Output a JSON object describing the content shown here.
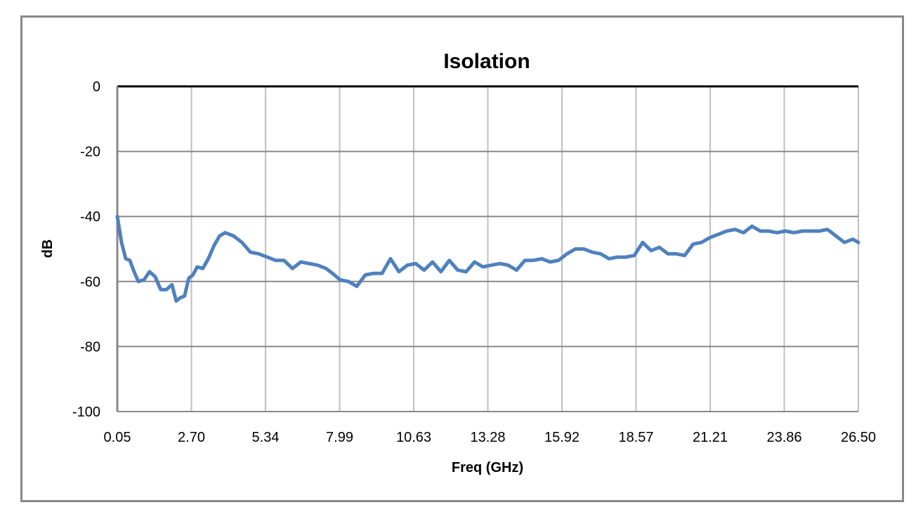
{
  "chart_data": {
    "type": "line",
    "title": "Isolation",
    "xlabel": "Freq (GHz)",
    "ylabel": "dB",
    "xlim": [
      0.05,
      26.5
    ],
    "ylim": [
      -100,
      0
    ],
    "grid": true,
    "legend": "none",
    "x_tick_labels": [
      "0.05",
      "2.70",
      "5.34",
      "7.99",
      "10.63",
      "13.28",
      "15.92",
      "18.57",
      "21.21",
      "23.86",
      "26.50"
    ],
    "y_tick_labels": [
      "0",
      "-20",
      "-40",
      "-60",
      "-80",
      "-100"
    ],
    "series": [
      {
        "name": "Isolation",
        "color": "#4F81BD",
        "x": [
          0.05,
          0.2,
          0.35,
          0.5,
          0.65,
          0.8,
          1.0,
          1.2,
          1.4,
          1.6,
          1.8,
          2.0,
          2.15,
          2.3,
          2.45,
          2.6,
          2.75,
          2.9,
          3.1,
          3.3,
          3.5,
          3.7,
          3.9,
          4.2,
          4.5,
          4.8,
          5.1,
          5.4,
          5.7,
          6.0,
          6.3,
          6.6,
          6.9,
          7.2,
          7.5,
          7.8,
          8.0,
          8.3,
          8.6,
          8.9,
          9.2,
          9.5,
          9.8,
          10.1,
          10.4,
          10.7,
          11.0,
          11.3,
          11.6,
          11.9,
          12.2,
          12.5,
          12.8,
          13.1,
          13.4,
          13.7,
          14.0,
          14.3,
          14.6,
          14.9,
          15.2,
          15.5,
          15.8,
          16.1,
          16.4,
          16.7,
          17.0,
          17.3,
          17.6,
          17.9,
          18.2,
          18.5,
          18.8,
          19.1,
          19.4,
          19.7,
          20.0,
          20.3,
          20.6,
          20.9,
          21.2,
          21.5,
          21.8,
          22.1,
          22.4,
          22.7,
          23.0,
          23.3,
          23.6,
          23.9,
          24.2,
          24.5,
          24.8,
          25.1,
          25.4,
          25.7,
          26.0,
          26.3,
          26.5
        ],
        "values": [
          -40,
          -48,
          -53,
          -53.5,
          -57,
          -60,
          -59.5,
          -57,
          -58.5,
          -62.5,
          -62.5,
          -61,
          -66,
          -65,
          -64.5,
          -59,
          -58,
          -55.5,
          -56,
          -53,
          -49,
          -46,
          -45,
          -46,
          -48,
          -51,
          -51.5,
          -52.5,
          -53.5,
          -53.5,
          -56,
          -54,
          -54.5,
          -55,
          -56,
          -58,
          -59.5,
          -60,
          -61.5,
          -58,
          -57.5,
          -57.5,
          -53,
          -57,
          -55,
          -54.5,
          -56.5,
          -54,
          -57,
          -53.5,
          -56.5,
          -57,
          -54,
          -55.5,
          -55,
          -54.5,
          -55,
          -56.5,
          -53.5,
          -53.5,
          -53,
          -54,
          -53.5,
          -51.5,
          -50,
          -50,
          -51,
          -51.5,
          -53,
          -52.5,
          -52.5,
          -52,
          -48,
          -50.5,
          -49.5,
          -51.5,
          -51.5,
          -52,
          -48.5,
          -48,
          -46.5,
          -45.5,
          -44.5,
          -44,
          -45,
          -43,
          -44.5,
          -44.5,
          -45,
          -44.5,
          -45,
          -44.5,
          -44.5,
          -44.5,
          -44,
          -46,
          -48,
          -47,
          -48
        ]
      }
    ]
  }
}
